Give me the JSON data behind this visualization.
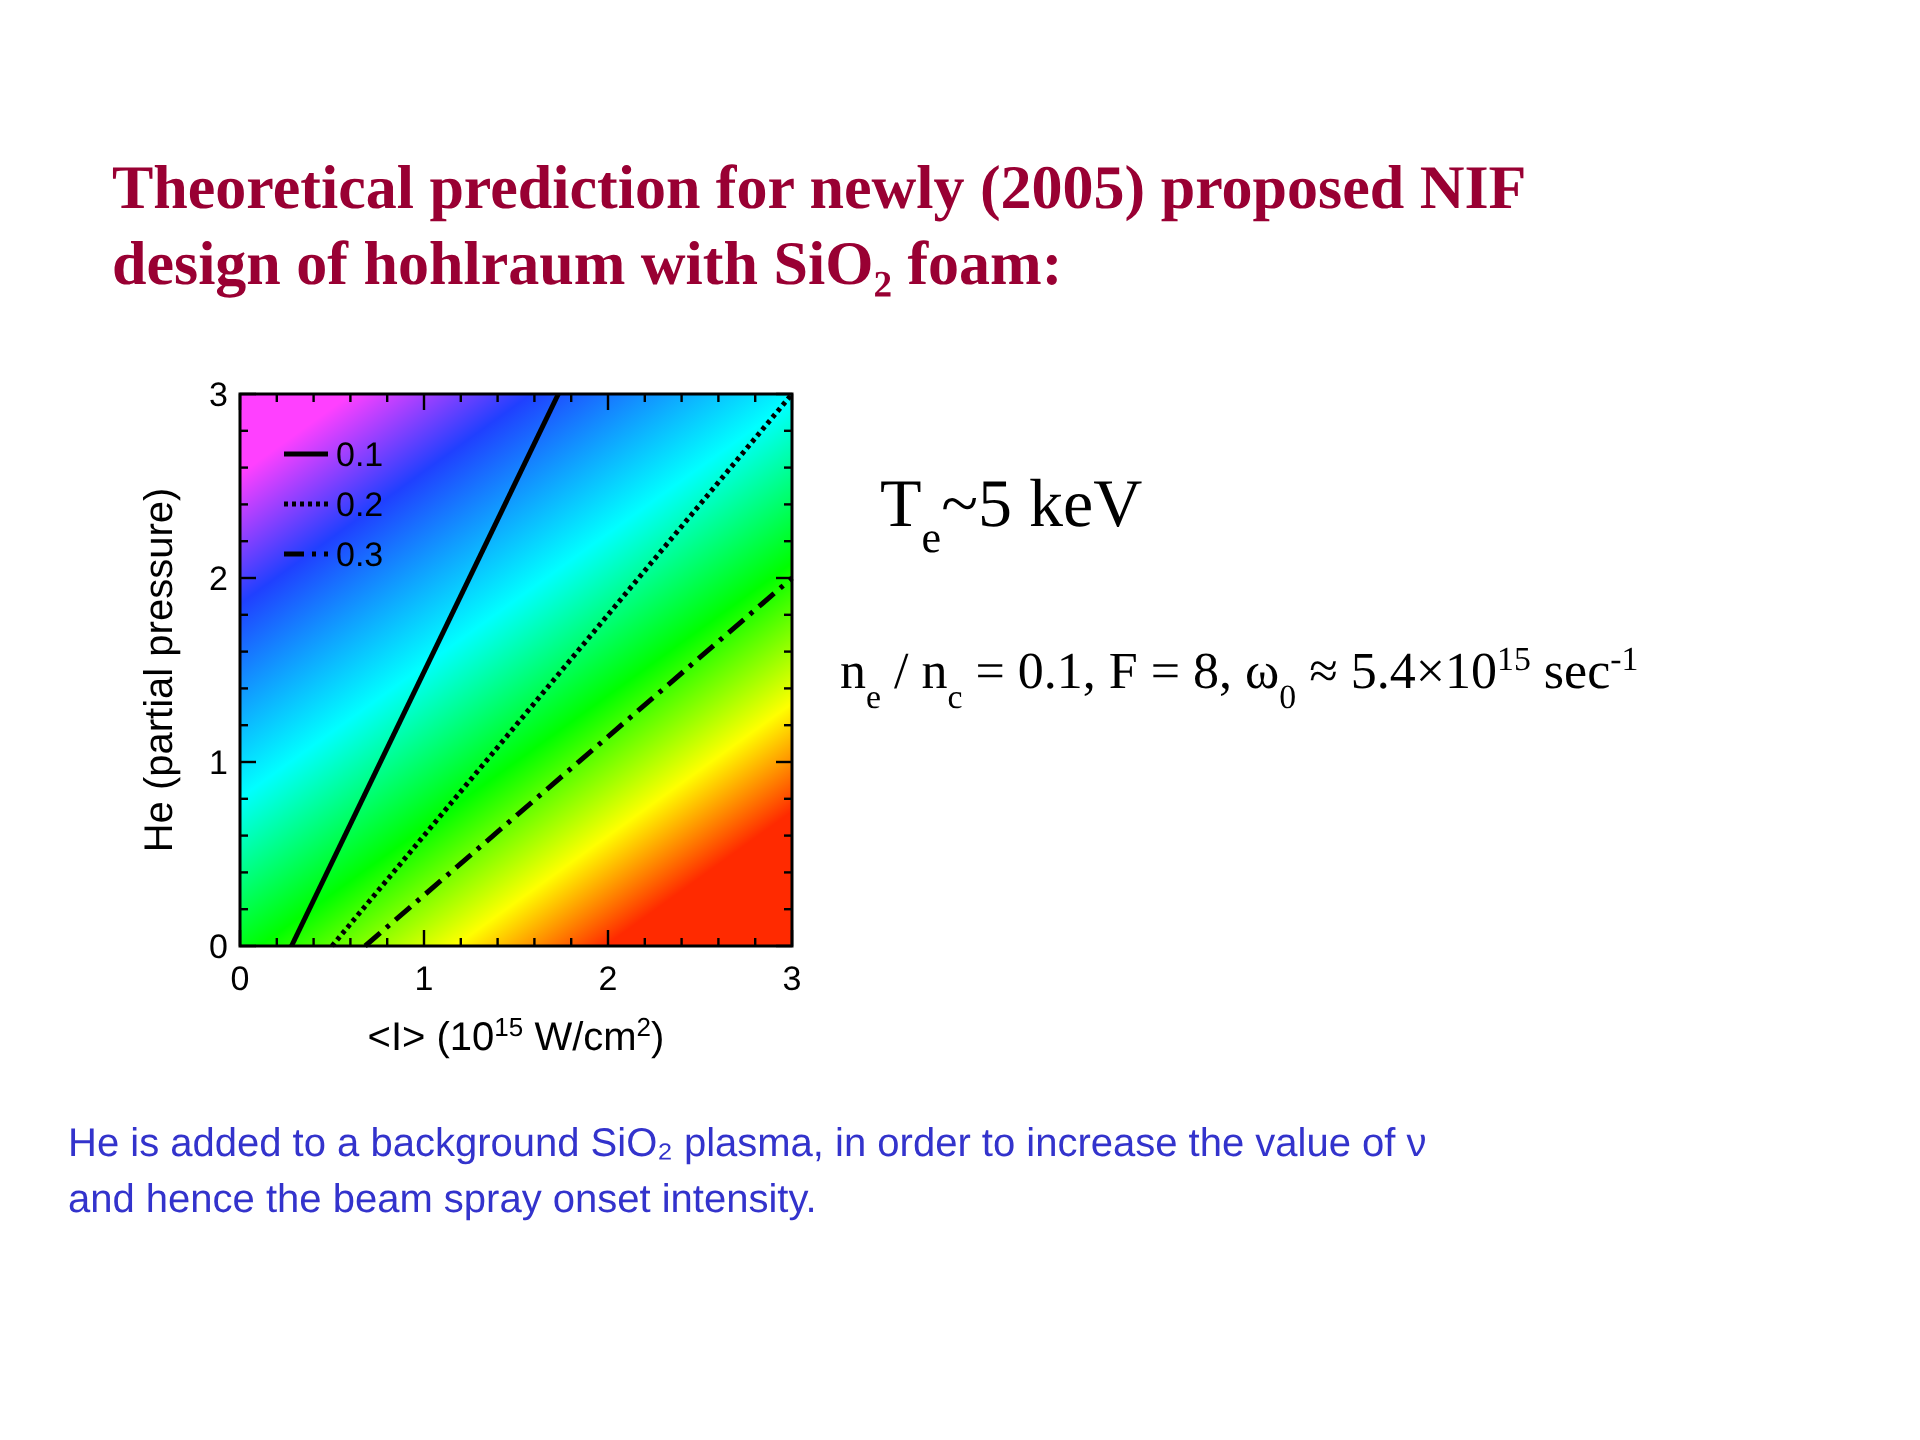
{
  "chart_data": {
    "type": "line",
    "title": "Theoretical prediction for newly (2005) proposed NIF design of hohlraum with SiO₂ foam:",
    "xlabel": "<I> (10$^{15}$ W/cm$^{2}$)",
    "ylabel": "He (partial pressure)",
    "xlim": [
      0,
      3
    ],
    "ylim": [
      0,
      3
    ],
    "xticks": [
      0,
      {
        "value": 0.2,
        "label": null
      },
      {
        "value": 0.4,
        "label": null
      },
      {
        "value": 0.6,
        "label": null
      },
      {
        "value": 0.8,
        "label": null
      },
      1,
      {
        "value": 1.2,
        "label": null
      },
      {
        "value": 1.4,
        "label": null
      },
      {
        "value": 1.6,
        "label": null
      },
      {
        "value": 1.8,
        "label": null
      },
      2,
      {
        "value": 2.2,
        "label": null
      },
      {
        "value": 2.4,
        "label": null
      },
      {
        "value": 2.6,
        "label": null
      },
      {
        "value": 2.8,
        "label": null
      },
      3
    ],
    "yticks": [
      0,
      {
        "value": 0.2,
        "label": null
      },
      {
        "value": 0.4,
        "label": null
      },
      {
        "value": 0.6,
        "label": null
      },
      {
        "value": 0.8,
        "label": null
      },
      1,
      {
        "value": 1.2,
        "label": null
      },
      {
        "value": 1.4,
        "label": null
      },
      {
        "value": 1.6,
        "label": null
      },
      {
        "value": 1.8,
        "label": null
      },
      2,
      {
        "value": 2.2,
        "label": null
      },
      {
        "value": 2.4,
        "label": null
      },
      {
        "value": 2.6,
        "label": null
      },
      {
        "value": 2.8,
        "label": null
      },
      3
    ],
    "legend": "top left",
    "grid": false,
    "series": [
      {
        "name": "0.1",
        "color": "#000000",
        "line_style": "solid",
        "x": [
          0.28,
          1.73
        ],
        "values": [
          0,
          3
        ]
      },
      {
        "name": "0.2",
        "color": "#000000",
        "line_style": "dotted",
        "x": [
          0.5,
          3
        ],
        "values": [
          0,
          3
        ]
      },
      {
        "name": "0.3",
        "color": "#000000",
        "line_style": "dashdot",
        "x": [
          0.68,
          3
        ],
        "values": [
          0,
          2.0
        ]
      }
    ],
    "annotations": [
      "T$_{e}$~5 keV",
      "n$_{e}$ / n$_{c}$ = 0.1,  F = 8,  ω$_{0}$ ≈ 5.4×10$^{15}$ sec$^{-1}$",
      "He is  added to a background SiO₂ plasma, in order to increase the value of ν and hence the beam spray onset intensity."
    ]
  }
}
